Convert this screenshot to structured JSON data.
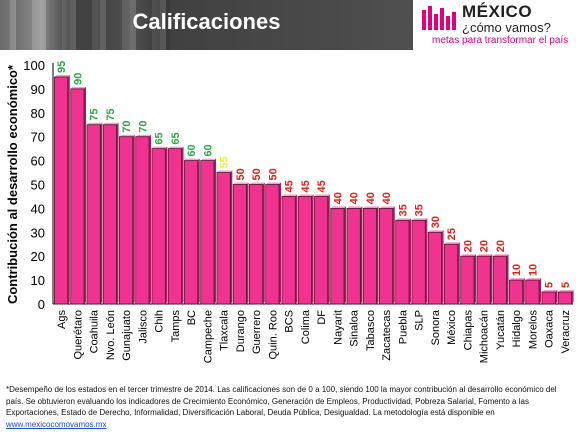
{
  "header": {
    "title": "Calificaciones"
  },
  "logo": {
    "word": "MÉXICO",
    "sub": "¿cómo vamos?",
    "tagline": "metas para transformar el país"
  },
  "colors": {
    "bar": "#f0338f",
    "bar_edge": "#5a1036",
    "green": "#2fa84a",
    "red": "#e0221b",
    "yellow": "#f2ee3a",
    "accent": "#e0007a"
  },
  "chart_data": {
    "type": "bar",
    "ylabel": "Contribución al desarrollo económico*",
    "ylim": [
      0,
      100
    ],
    "yticks": [
      0,
      10,
      20,
      30,
      40,
      50,
      60,
      70,
      80,
      90,
      100
    ],
    "categories": [
      "Ags",
      "Querétaro",
      "Coahuila",
      "Nvo. León",
      "Gunajuato",
      "Jalisco",
      "Chih",
      "Tamps",
      "BC",
      "Campeche",
      "Tlaxcala",
      "Durango",
      "Guerrero",
      "Quin. Roo",
      "BCS",
      "Colima",
      "DF",
      "Nayarit",
      "Sinaloa",
      "Tabasco",
      "Zacatecas",
      "Puebla",
      "SLP",
      "Sonora",
      "México",
      "Chiapas",
      "Michoacán",
      "Yucatán",
      "Hidalgo",
      "Morelos",
      "Oaxaca",
      "Veracruz"
    ],
    "values": [
      95,
      90,
      75,
      75,
      70,
      70,
      65,
      65,
      60,
      60,
      55,
      50,
      50,
      50,
      45,
      45,
      45,
      40,
      40,
      40,
      40,
      35,
      35,
      30,
      25,
      20,
      20,
      20,
      10,
      10,
      5,
      5
    ]
  },
  "footnote": {
    "text": "*Desempeño de los estados en el tercer trimestre de 2014. Las calificaciones son de 0 a 100, siendo 100 la mayor contribución al desarrollo económico del país. Se obtuvieron evaluando los indicadores de Crecimiento Económico, Generación de Empleos, Productividad, Pobreza Salarial, Fomento a las Exportaciones, Estado de Derecho, Informalidad, Diversificación Laboral, Deuda Pública, Desigualdad. La metodología está disponible en ",
    "link": "www.mexicocomovamos.mx"
  }
}
